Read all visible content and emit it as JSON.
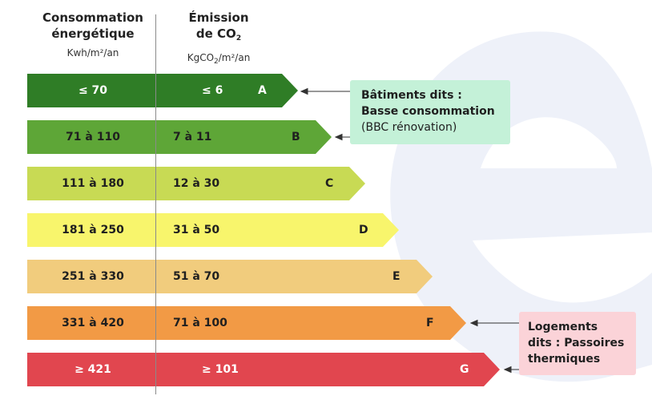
{
  "header": {
    "energy_title_line1": "Consommation",
    "energy_title_line2": "énergétique",
    "energy_unit": "Kwh/m²/an",
    "co2_title_line1": "Émission",
    "co2_title_line2_prefix": "de CO",
    "co2_title_line2_sub": "2",
    "co2_unit_prefix": "KgCO",
    "co2_unit_sub": "2",
    "co2_unit_suffix": "/m²/an"
  },
  "classes": [
    {
      "letter": "A",
      "energy": "≤ 70",
      "co2": "≤ 6",
      "color": "#2f7d26",
      "text_color": "#ffffff"
    },
    {
      "letter": "B",
      "energy": "71 à 110",
      "co2": "7 à 11",
      "color": "#5ea637",
      "text_color": "#1f1f1f"
    },
    {
      "letter": "C",
      "energy": "111 à 180",
      "co2": "12 à 30",
      "color": "#c8da54",
      "text_color": "#1f1f1f"
    },
    {
      "letter": "D",
      "energy": "181 à 250",
      "co2": "31 à 50",
      "color": "#f8f56c",
      "text_color": "#1f1f1f"
    },
    {
      "letter": "E",
      "energy": "251 à 330",
      "co2": "51 à 70",
      "color": "#f1cc7d",
      "text_color": "#1f1f1f"
    },
    {
      "letter": "F",
      "energy": "331 à 420",
      "co2": "71 à 100",
      "color": "#f29a45",
      "text_color": "#1f1f1f"
    },
    {
      "letter": "G",
      "energy": "≥ 421",
      "co2": "≥ 101",
      "color": "#e1464f",
      "text_color": "#ffffff"
    }
  ],
  "callouts": {
    "bbc": {
      "line1": "Bâtiments dits :",
      "line2": "Basse consommation",
      "line3": "(BBC rénovation)",
      "background": "#c4f1d8"
    },
    "passoires": {
      "line1": "Logements",
      "line2": "dits : Passoires",
      "line3": "thermiques",
      "background": "#fbd3d8"
    }
  },
  "watermark_color": "#eef1f9"
}
